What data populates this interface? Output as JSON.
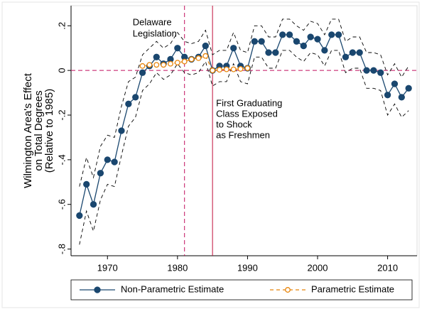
{
  "chart_data": {
    "type": "line",
    "y_label": [
      "Wilmington Area's Effect",
      "on Total Degrees",
      "(Relative to 1985)"
    ],
    "x": [
      1966,
      1967,
      1968,
      1969,
      1970,
      1971,
      1972,
      1973,
      1974,
      1975,
      1976,
      1977,
      1978,
      1979,
      1980,
      1981,
      1982,
      1983,
      1984,
      1985,
      1986,
      1987,
      1988,
      1989,
      1990,
      1991,
      1992,
      1993,
      1994,
      1995,
      1996,
      1997,
      1998,
      1999,
      2000,
      2001,
      2002,
      2003,
      2004,
      2005,
      2006,
      2007,
      2008,
      2009,
      2010,
      2011,
      2012,
      2013
    ],
    "series": [
      {
        "name": "Non-Parametric Estimate",
        "color": "#1a476f",
        "style": "solid",
        "marker": "filled",
        "values": [
          -0.65,
          -0.51,
          -0.6,
          -0.46,
          -0.4,
          -0.41,
          -0.27,
          -0.15,
          -0.12,
          -0.01,
          0.02,
          0.06,
          0.03,
          0.05,
          0.1,
          0.06,
          0.05,
          0.06,
          0.11,
          0.0,
          0.02,
          0.02,
          0.1,
          0.02,
          0.01,
          0.13,
          0.13,
          0.08,
          0.08,
          0.16,
          0.16,
          0.13,
          0.11,
          0.15,
          0.14,
          0.09,
          0.16,
          0.16,
          0.06,
          0.08,
          0.08,
          0.0,
          0.0,
          -0.01,
          -0.11,
          -0.06,
          -0.12,
          -0.08
        ]
      },
      {
        "color": "#000000",
        "style": "dash",
        "values": [
          -0.52,
          -0.39,
          -0.48,
          -0.34,
          -0.29,
          -0.3,
          -0.16,
          -0.05,
          -0.03,
          0.07,
          0.1,
          0.13,
          0.1,
          0.12,
          0.17,
          0.13,
          0.12,
          0.13,
          0.18,
          0.07,
          0.09,
          0.09,
          0.17,
          0.09,
          0.08,
          0.2,
          0.2,
          0.15,
          0.15,
          0.23,
          0.23,
          0.2,
          0.18,
          0.22,
          0.21,
          0.16,
          0.23,
          0.23,
          0.13,
          0.15,
          0.15,
          0.08,
          0.08,
          0.07,
          -0.02,
          0.03,
          -0.03,
          0.02
        ]
      },
      {
        "color": "#000000",
        "style": "dash",
        "values": [
          -0.78,
          -0.63,
          -0.72,
          -0.58,
          -0.51,
          -0.52,
          -0.38,
          -0.25,
          -0.21,
          -0.09,
          -0.06,
          -0.01,
          -0.04,
          -0.02,
          0.03,
          -0.01,
          -0.02,
          -0.01,
          0.04,
          -0.07,
          -0.05,
          -0.05,
          0.03,
          -0.05,
          -0.06,
          0.06,
          0.06,
          0.01,
          0.01,
          0.09,
          0.09,
          0.06,
          0.04,
          0.08,
          0.07,
          0.02,
          0.09,
          0.09,
          -0.01,
          0.01,
          0.01,
          -0.08,
          -0.08,
          -0.09,
          -0.2,
          -0.15,
          -0.21,
          -0.18
        ]
      },
      {
        "name": "Parametric Estimate",
        "color": "#e8850b",
        "style": "dash",
        "marker": "hollow",
        "values": [
          null,
          null,
          null,
          null,
          null,
          null,
          null,
          null,
          null,
          0.02,
          0.025,
          0.025,
          0.025,
          0.03,
          0.035,
          0.04,
          0.05,
          0.055,
          0.065,
          0.0,
          0.003,
          0.005,
          0.005,
          0.007,
          0.01,
          null,
          null,
          null,
          null,
          null,
          null,
          null,
          null,
          null,
          null,
          null,
          null,
          null,
          null,
          null,
          null,
          null,
          null,
          null,
          null,
          null,
          null,
          null
        ]
      }
    ],
    "xlim": [
      1964.8,
      2014.2
    ],
    "ylim": [
      -0.83,
      0.29
    ],
    "xticks": [
      1970,
      1980,
      1990,
      2000,
      2010
    ],
    "yticks": [
      {
        "value": 0.2,
        "label": ".2"
      },
      0,
      {
        "value": -0.2,
        "label": "-.2"
      },
      {
        "value": -0.4,
        "label": "-.4"
      },
      {
        "value": -0.6,
        "label": "-.6"
      },
      {
        "value": -0.8,
        "label": "-.8"
      }
    ],
    "hline": {
      "y": 0,
      "color": "#c10f5e"
    },
    "vlines": [
      {
        "x": 1981,
        "color": "#c10f5e",
        "style": "dash",
        "annotation": [
          "Delaware",
          "Legislation"
        ]
      },
      {
        "x": 1985,
        "color": "#c10f3a",
        "style": "solid",
        "annotation": [
          "First Graduating",
          "Class Exposed",
          "to Shock",
          "as Freshmen"
        ]
      }
    ],
    "legend": "bottom"
  }
}
